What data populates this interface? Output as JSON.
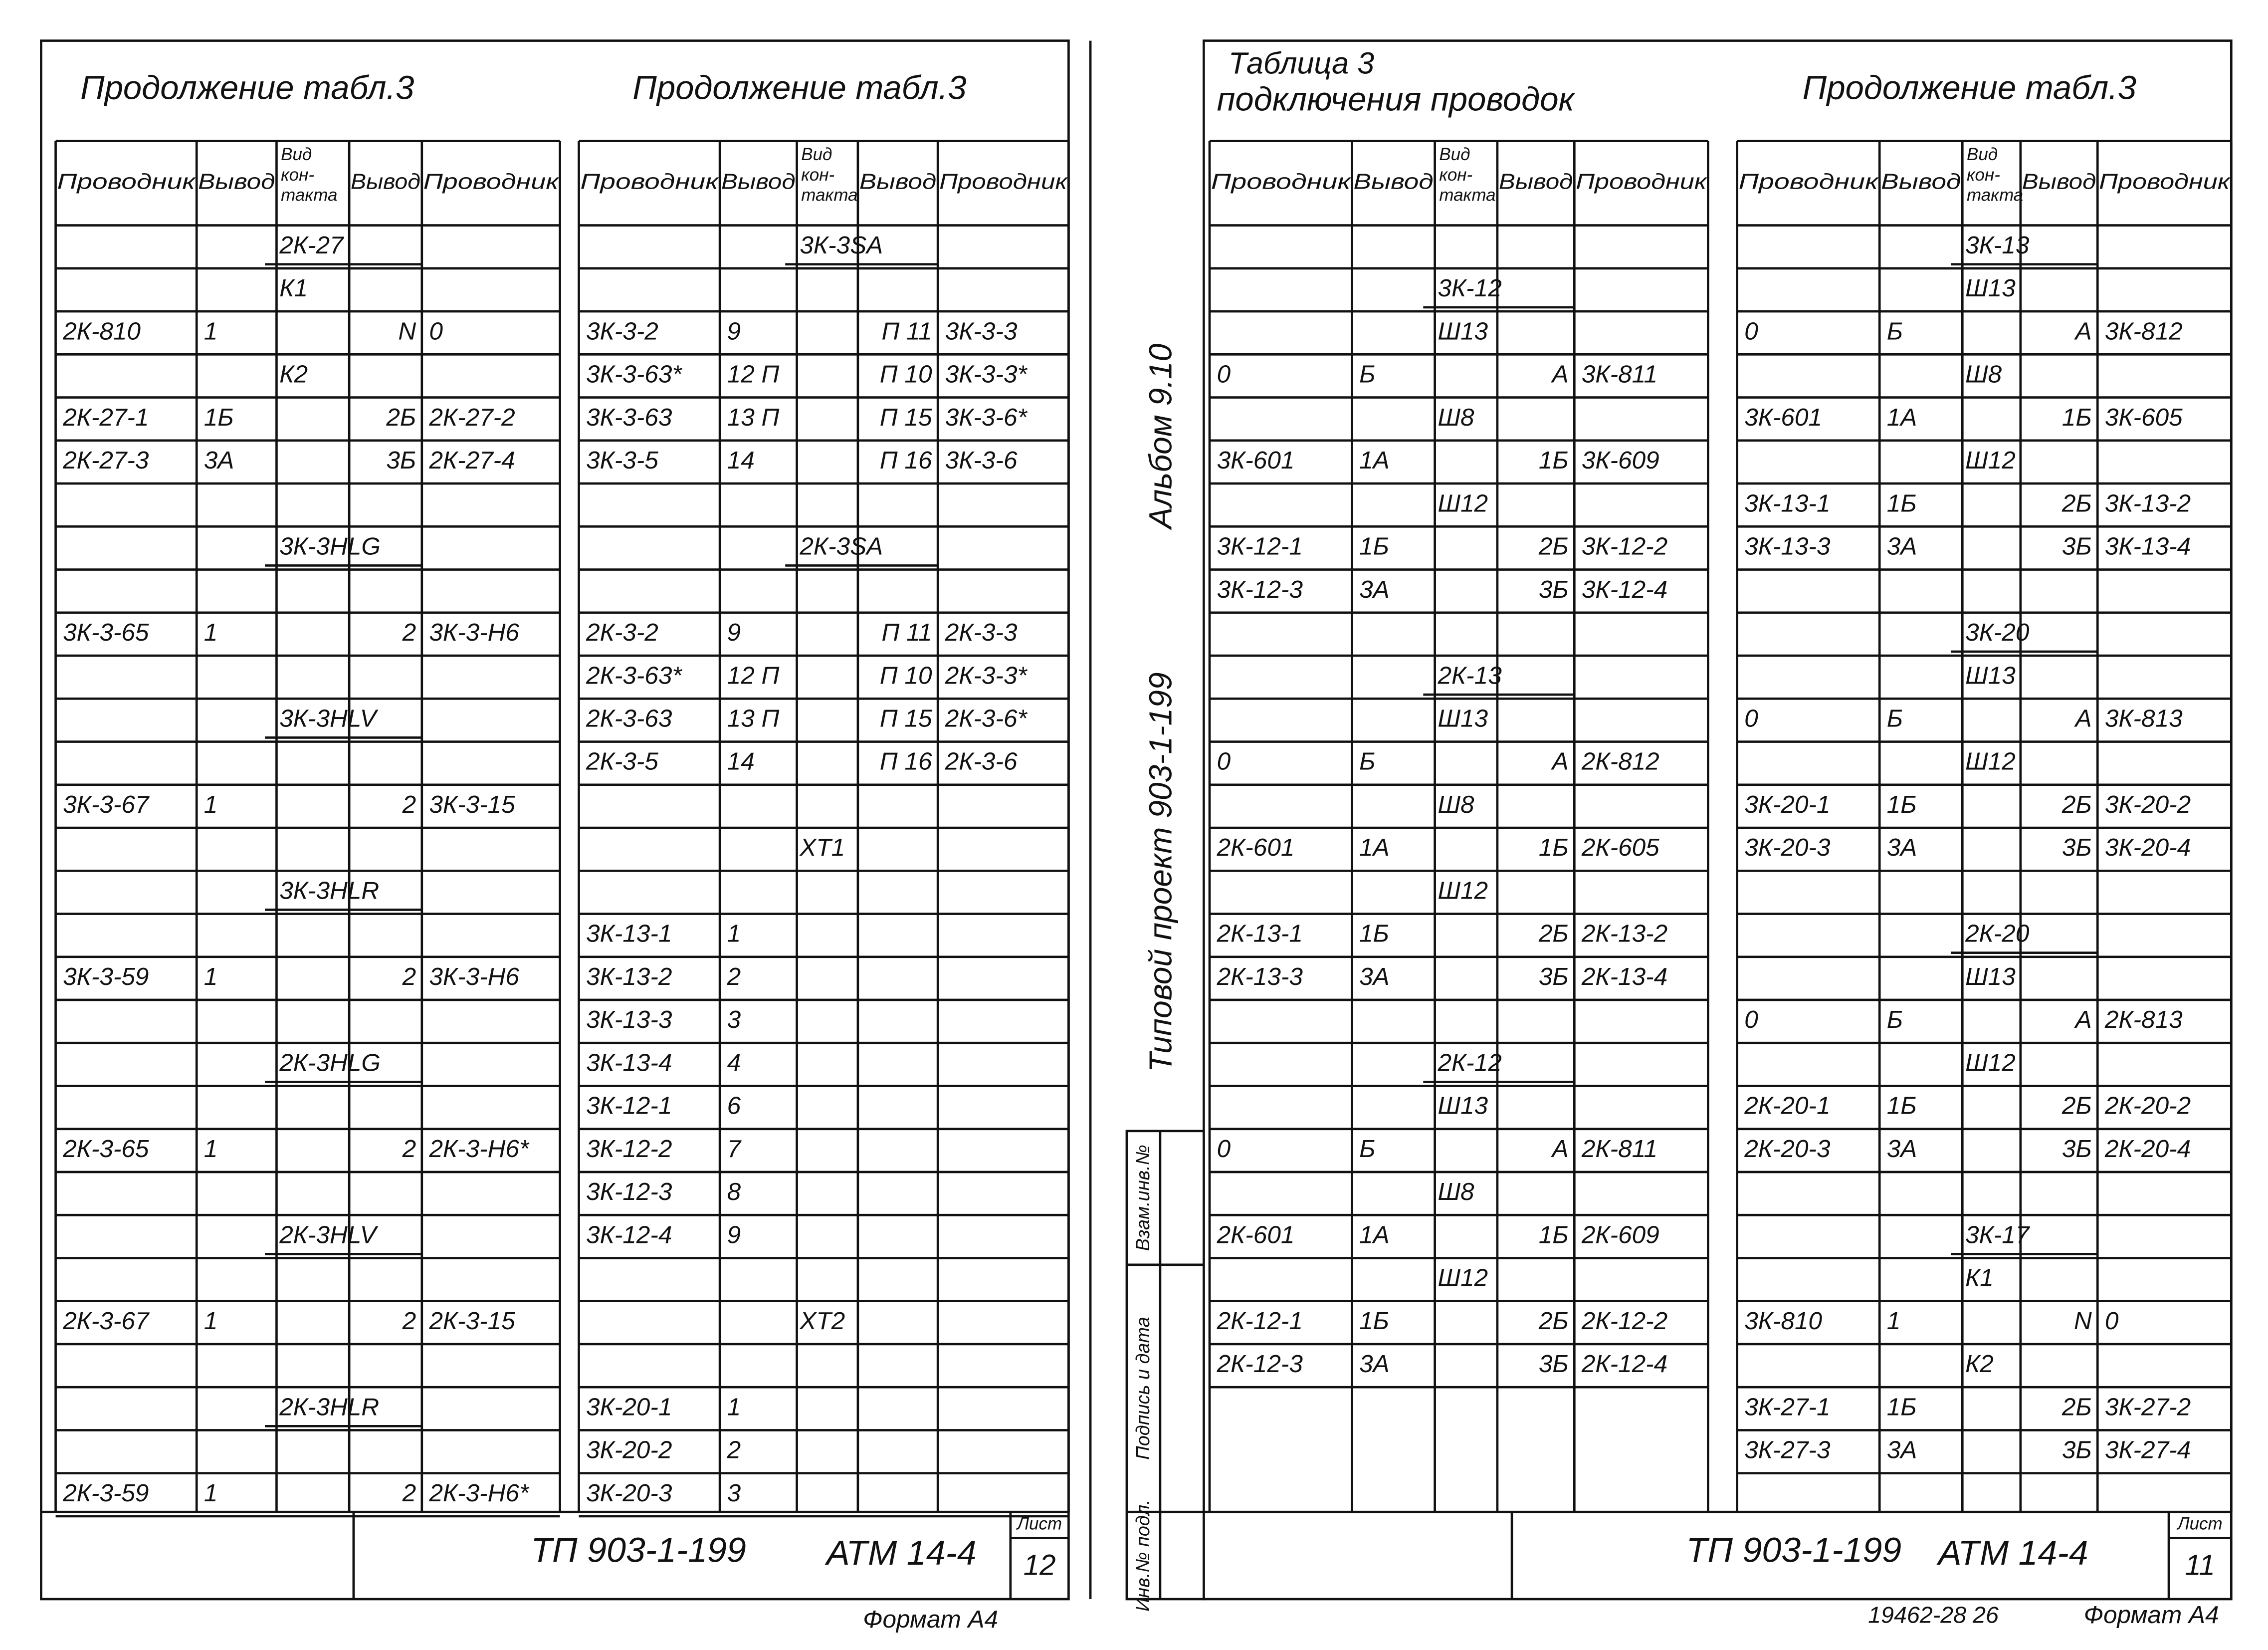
{
  "sheets": [
    {
      "title": "Продолжение табл.3",
      "header": [
        "Проводник",
        "Вывод",
        [
          "Вид",
          "кон-",
          "такта"
        ],
        "Вывод",
        "Проводник"
      ],
      "rows": [
        [
          null,
          null,
          "2К-27",
          null,
          null
        ],
        [
          null,
          null,
          "К1",
          null,
          null
        ],
        [
          "2К-810",
          "1",
          null,
          "N",
          "0"
        ],
        [
          null,
          null,
          "К2",
          null,
          null
        ],
        [
          "2К-27-1",
          "1Б",
          null,
          "2Б",
          "2К-27-2"
        ],
        [
          "2К-27-3",
          "3А",
          null,
          "3Б",
          "2К-27-4"
        ],
        [
          null,
          null,
          null,
          null,
          null
        ],
        [
          null,
          null,
          "3К-3HLG",
          null,
          null
        ],
        [
          null,
          null,
          null,
          null,
          null
        ],
        [
          "3К-3-65",
          "1",
          null,
          "2",
          "3К-3-Н6"
        ],
        [
          null,
          null,
          null,
          null,
          null
        ],
        [
          null,
          null,
          "3К-3HLV",
          null,
          null
        ],
        [
          null,
          null,
          null,
          null,
          null
        ],
        [
          "3К-3-67",
          "1",
          null,
          "2",
          "3К-3-15"
        ],
        [
          null,
          null,
          null,
          null,
          null
        ],
        [
          null,
          null,
          "3К-3HLR",
          null,
          null
        ],
        [
          null,
          null,
          null,
          null,
          null
        ],
        [
          "3К-3-59",
          "1",
          null,
          "2",
          "3К-3-Н6"
        ],
        [
          null,
          null,
          null,
          null,
          null
        ],
        [
          null,
          null,
          "2К-3HLG",
          null,
          null
        ],
        [
          null,
          null,
          null,
          null,
          null
        ],
        [
          "2К-3-65",
          "1",
          null,
          "2",
          "2К-3-Н6*"
        ],
        [
          null,
          null,
          null,
          null,
          null
        ],
        [
          null,
          null,
          "2К-3HLV",
          null,
          null
        ],
        [
          null,
          null,
          null,
          null,
          null
        ],
        [
          "2К-3-67",
          "1",
          null,
          "2",
          "2К-3-15"
        ],
        [
          null,
          null,
          null,
          null,
          null
        ],
        [
          null,
          null,
          "2К-3HLR",
          null,
          null
        ],
        [
          null,
          null,
          null,
          null,
          null
        ],
        [
          "2К-3-59",
          "1",
          null,
          "2",
          "2К-3-Н6*"
        ]
      ]
    },
    {
      "title": "Продолжение табл.3",
      "header": [
        "Проводник",
        "Вывод",
        [
          "Вид",
          "кон-",
          "такта"
        ],
        "Вывод",
        "Проводник"
      ],
      "rows": [
        [
          null,
          null,
          "3К-3SA",
          null,
          null
        ],
        [
          null,
          null,
          null,
          null,
          null
        ],
        [
          "3К-3-2",
          "9",
          null,
          "П 11",
          "3К-3-3"
        ],
        [
          "3К-3-63*",
          "12 П",
          null,
          "П 10",
          "3К-3-3*"
        ],
        [
          "3К-3-63",
          "13 П",
          null,
          "П 15",
          "3К-3-6*"
        ],
        [
          "3К-3-5",
          "14",
          null,
          "П 16",
          "3К-3-6"
        ],
        [
          null,
          null,
          null,
          null,
          null
        ],
        [
          null,
          null,
          "2К-3SA",
          null,
          null
        ],
        [
          null,
          null,
          null,
          null,
          null
        ],
        [
          "2К-3-2",
          "9",
          null,
          "П 11",
          "2К-3-3"
        ],
        [
          "2К-3-63*",
          "12 П",
          null,
          "П 10",
          "2К-3-3*"
        ],
        [
          "2К-3-63",
          "13 П",
          null,
          "П 15",
          "2К-3-6*"
        ],
        [
          "2К-3-5",
          "14",
          null,
          "П 16",
          "2К-3-6"
        ],
        [
          null,
          null,
          null,
          null,
          null
        ],
        [
          null,
          null,
          "ХТ1",
          null,
          null
        ],
        [
          null,
          null,
          null,
          null,
          null
        ],
        [
          "3К-13-1",
          "1",
          null,
          null,
          null
        ],
        [
          "3К-13-2",
          "2",
          null,
          null,
          null
        ],
        [
          "3К-13-3",
          "3",
          null,
          null,
          null
        ],
        [
          "3К-13-4",
          "4",
          null,
          null,
          null
        ],
        [
          "3К-12-1",
          "6",
          null,
          null,
          null
        ],
        [
          "3К-12-2",
          "7",
          null,
          null,
          null
        ],
        [
          "3К-12-3",
          "8",
          null,
          null,
          null
        ],
        [
          "3К-12-4",
          "9",
          null,
          null,
          null
        ],
        [
          null,
          null,
          null,
          null,
          null
        ],
        [
          null,
          null,
          "ХТ2",
          null,
          null
        ],
        [
          null,
          null,
          null,
          null,
          null
        ],
        [
          "3К-20-1",
          "1",
          null,
          null,
          null
        ],
        [
          "3К-20-2",
          "2",
          null,
          null,
          null
        ],
        [
          "3К-20-3",
          "3",
          null,
          null,
          null
        ]
      ]
    },
    {
      "title": "Таблица 3",
      "subtitle": "подключения проводок",
      "header": [
        "Проводник",
        "Вывод",
        [
          "Вид",
          "кон-",
          "такта"
        ],
        "Вывод",
        "Проводник"
      ],
      "rows": [
        [
          null,
          null,
          null,
          null,
          null
        ],
        [
          null,
          null,
          "3К-12",
          null,
          null
        ],
        [
          null,
          null,
          "Ш13",
          null,
          null
        ],
        [
          "0",
          "Б",
          null,
          "А",
          "3К-811"
        ],
        [
          null,
          null,
          "Ш8",
          null,
          null
        ],
        [
          "3К-601",
          "1А",
          null,
          "1Б",
          "3К-609"
        ],
        [
          null,
          null,
          "Ш12",
          null,
          null
        ],
        [
          "3К-12-1",
          "1Б",
          null,
          "2Б",
          "3К-12-2"
        ],
        [
          "3К-12-3",
          "3А",
          null,
          "3Б",
          "3К-12-4"
        ],
        [
          null,
          null,
          null,
          null,
          null
        ],
        [
          null,
          null,
          "2К-13",
          null,
          null
        ],
        [
          null,
          null,
          "Ш13",
          null,
          null
        ],
        [
          "0",
          "Б",
          null,
          "А",
          "2К-812"
        ],
        [
          null,
          null,
          "Ш8",
          null,
          null
        ],
        [
          "2К-601",
          "1А",
          null,
          "1Б",
          "2К-605"
        ],
        [
          null,
          null,
          "Ш12",
          null,
          null
        ],
        [
          "2К-13-1",
          "1Б",
          null,
          "2Б",
          "2К-13-2"
        ],
        [
          "2К-13-3",
          "3А",
          null,
          "3Б",
          "2К-13-4"
        ],
        [
          null,
          null,
          null,
          null,
          null
        ],
        [
          null,
          null,
          "2К-12",
          null,
          null
        ],
        [
          null,
          null,
          "Ш13",
          null,
          null
        ],
        [
          "0",
          "Б",
          null,
          "А",
          "2К-811"
        ],
        [
          null,
          null,
          "Ш8",
          null,
          null
        ],
        [
          "2К-601",
          "1А",
          null,
          "1Б",
          "2К-609"
        ],
        [
          null,
          null,
          "Ш12",
          null,
          null
        ],
        [
          "2К-12-1",
          "1Б",
          null,
          "2Б",
          "2К-12-2"
        ],
        [
          "2К-12-3",
          "3А",
          null,
          "3Б",
          "2К-12-4"
        ]
      ]
    },
    {
      "title": "Продолжение табл.3",
      "header": [
        "Проводник",
        "Вывод",
        [
          "Вид",
          "кон-",
          "такта"
        ],
        "Вывод",
        "Проводник"
      ],
      "rows": [
        [
          null,
          null,
          "3К-13",
          null,
          null
        ],
        [
          null,
          null,
          "Ш13",
          null,
          null
        ],
        [
          "0",
          "Б",
          null,
          "А",
          "3К-812"
        ],
        [
          null,
          null,
          "Ш8",
          null,
          null
        ],
        [
          "3К-601",
          "1А",
          null,
          "1Б",
          "3К-605"
        ],
        [
          null,
          null,
          "Ш12",
          null,
          null
        ],
        [
          "3К-13-1",
          "1Б",
          null,
          "2Б",
          "3К-13-2"
        ],
        [
          "3К-13-3",
          "3А",
          null,
          "3Б",
          "3К-13-4"
        ],
        [
          null,
          null,
          null,
          null,
          null
        ],
        [
          null,
          null,
          "3К-20",
          null,
          null
        ],
        [
          null,
          null,
          "Ш13",
          null,
          null
        ],
        [
          "0",
          "Б",
          null,
          "А",
          "3К-813"
        ],
        [
          null,
          null,
          "Ш12",
          null,
          null
        ],
        [
          "3К-20-1",
          "1Б",
          null,
          "2Б",
          "3К-20-2"
        ],
        [
          "3К-20-3",
          "3А",
          null,
          "3Б",
          "3К-20-4"
        ],
        [
          null,
          null,
          null,
          null,
          null
        ],
        [
          null,
          null,
          "2К-20",
          null,
          null
        ],
        [
          null,
          null,
          "Ш13",
          null,
          null
        ],
        [
          "0",
          "Б",
          null,
          "А",
          "2К-813"
        ],
        [
          null,
          null,
          "Ш12",
          null,
          null
        ],
        [
          "2К-20-1",
          "1Б",
          null,
          "2Б",
          "2К-20-2"
        ],
        [
          "2К-20-3",
          "3А",
          null,
          "3Б",
          "2К-20-4"
        ],
        [
          null,
          null,
          null,
          null,
          null
        ],
        [
          null,
          null,
          "3К-17",
          null,
          null
        ],
        [
          null,
          null,
          "К1",
          null,
          null
        ],
        [
          "3К-810",
          "1",
          null,
          "N",
          "0"
        ],
        [
          null,
          null,
          "К2",
          null,
          null
        ],
        [
          "3К-27-1",
          "1Б",
          null,
          "2Б",
          "3К-27-2"
        ],
        [
          "3К-27-3",
          "3А",
          null,
          "3Б",
          "3К-27-4"
        ]
      ]
    }
  ],
  "title_blocks": [
    {
      "code": "ТП 903-1-199",
      "doc": "АТМ 14-4",
      "sheet_label": "Лист",
      "sheet": "12"
    },
    {
      "code": "ТП 903-1-199",
      "doc": "АТМ 14-4",
      "sheet_label": "Лист",
      "sheet": "11"
    }
  ],
  "side": {
    "album": "Альбом 9.10",
    "project": "Типовой проект 903-1-199",
    "stamps": [
      "Инв.№ подл.",
      "Подпись и дата",
      "Взам.инв.№"
    ]
  },
  "footer": {
    "left_format": "Формат А4",
    "number": "19462-28 26",
    "right_format": "Формат А4"
  }
}
